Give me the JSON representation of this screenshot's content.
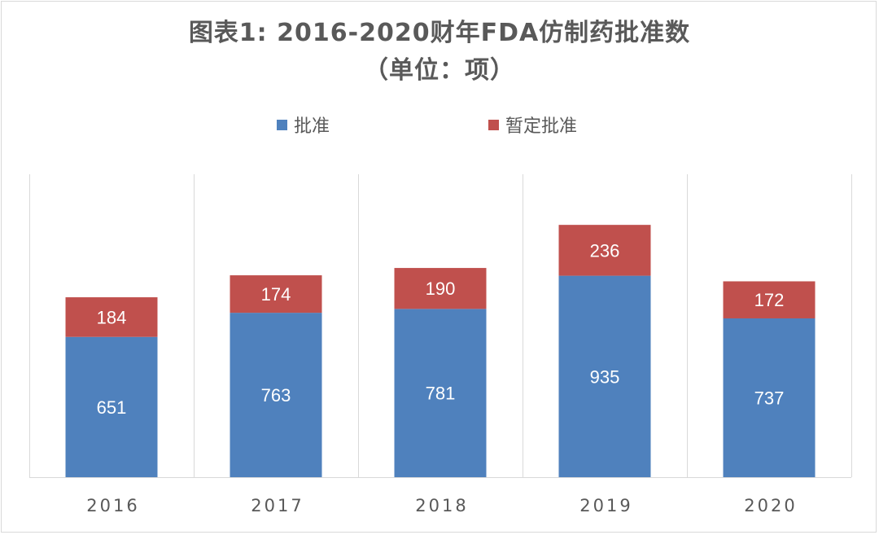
{
  "chart_data": {
    "type": "bar",
    "stacked": true,
    "title_line1": "图表1: 2016-2020财年FDA仿制药批准数",
    "title_line2": "（单位：项）",
    "categories": [
      "2016",
      "2017",
      "2018",
      "2019",
      "2020"
    ],
    "series": [
      {
        "name": "批准",
        "color": "#4f81bd",
        "values": [
          651,
          763,
          781,
          935,
          737
        ]
      },
      {
        "name": "暂定批准",
        "color": "#c0504d",
        "values": [
          184,
          174,
          190,
          236,
          172
        ]
      }
    ],
    "ylim": [
      0,
      1200
    ],
    "grid": "vertical category separators",
    "legend_position": "top"
  }
}
